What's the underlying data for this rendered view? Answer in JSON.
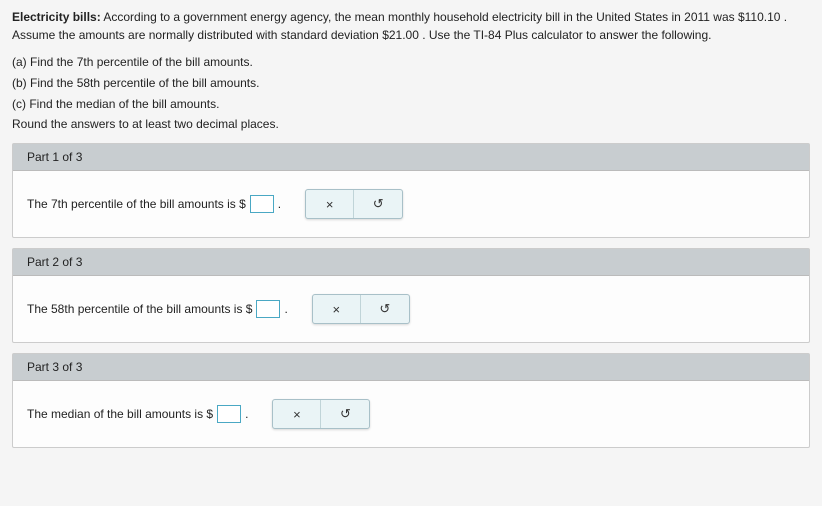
{
  "intro": {
    "title_bold": "Electricity bills:",
    "line1_part1": " According to a government energy agency, the mean monthly household electricity bill in the United States in 2011 was $110.10 .",
    "line2": "Assume the amounts are normally distributed with standard deviation $21.00 . Use the TI-84 Plus calculator to answer the following."
  },
  "questions": {
    "a": "(a) Find the 7th percentile of the bill amounts.",
    "b": "(b) Find the 58th percentile of the bill amounts.",
    "c": "(c) Find the median of the bill amounts.",
    "round": "Round the answers to at least two decimal places."
  },
  "parts": [
    {
      "header": "Part 1 of 3",
      "prompt_pre": "The 7th percentile of the bill amounts is $",
      "prompt_post": " ."
    },
    {
      "header": "Part 2 of 3",
      "prompt_pre": "The 58th percentile of the bill amounts is $",
      "prompt_post": " ."
    },
    {
      "header": "Part 3 of 3",
      "prompt_pre": "The median of the bill amounts is $",
      "prompt_post": " ."
    }
  ],
  "buttons": {
    "clear": "×",
    "reset": "↺"
  },
  "colors": {
    "part_header_bg": "#c8cdd0",
    "answer_box_border": "#4aa8c4",
    "btn_bg": "#eaf4f6"
  }
}
